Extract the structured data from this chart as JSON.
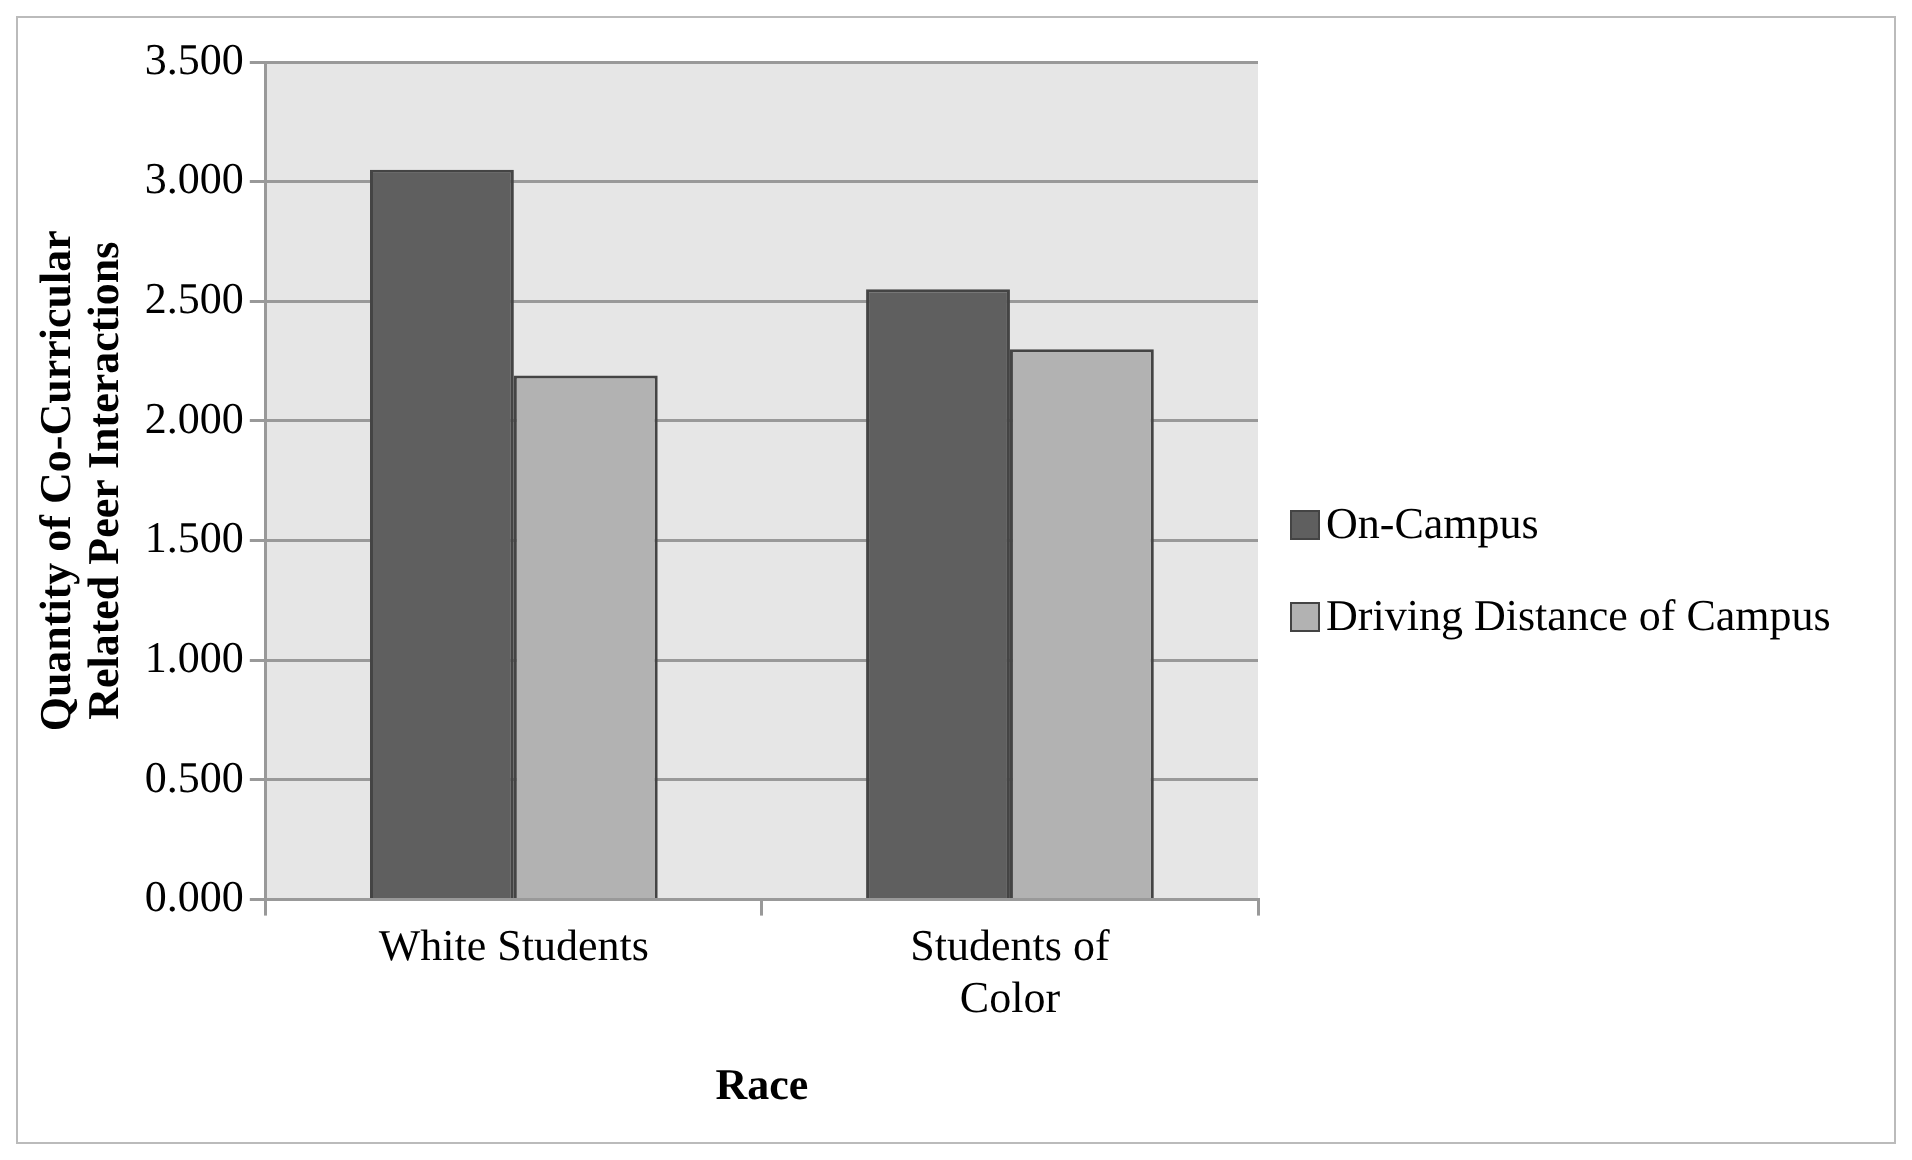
{
  "chart_data": {
    "type": "bar",
    "xlabel": "Race",
    "ylabel": "Quantity of Co-Curricular\nRelated Peer Interactions",
    "categories": [
      "White Students",
      "Students of Color"
    ],
    "series": [
      {
        "name": "On-Campus",
        "color": "#5f5f5f",
        "values": [
          3.05,
          2.55
        ]
      },
      {
        "name": "Driving Distance of Campus",
        "color": "#b2b2b2",
        "values": [
          2.19,
          2.3
        ]
      }
    ],
    "ylim": [
      0,
      3.5
    ],
    "yticks": [
      {
        "value": 0,
        "label": "0.000"
      },
      {
        "value": 0.5,
        "label": "0.500"
      },
      {
        "value": 1,
        "label": "1.000"
      },
      {
        "value": 1.5,
        "label": "1.500"
      },
      {
        "value": 2,
        "label": "2.000"
      },
      {
        "value": 2.5,
        "label": "2.500"
      },
      {
        "value": 3,
        "label": "3.000"
      },
      {
        "value": 3.5,
        "label": "3.500"
      }
    ],
    "grid": "y",
    "legend": "right"
  }
}
